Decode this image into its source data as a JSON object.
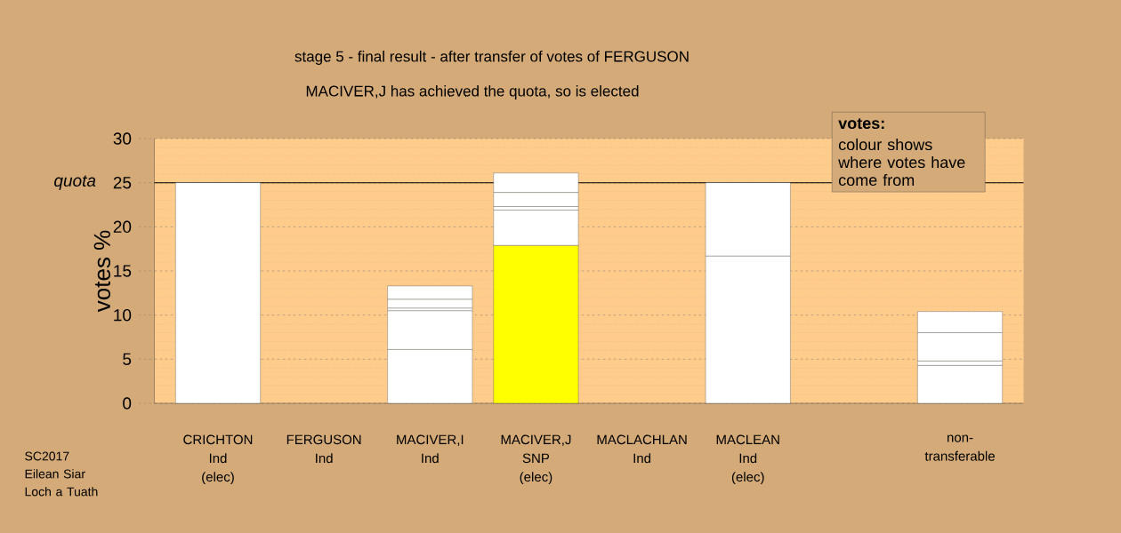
{
  "chart_data": {
    "type": "bar",
    "stacked": true,
    "title": "stage 5 - final result - after transfer of votes of FERGUSON",
    "subtitle": "MACIVER,J has achieved the quota, so is elected",
    "ylabel": "votes %",
    "categories": [
      "CRICHTON\nInd\n(elec)",
      "FERGUSON\nInd",
      "MACIVER,I\nInd",
      "MACIVER,J\nSNP\n(elec)",
      "MACLACHLAN\nInd",
      "MACLEAN\nInd\n(elec)",
      null,
      "non-\ntransferable"
    ],
    "series": [
      {
        "colors": [
          "#ffffff",
          "#ffffff",
          "#ffffff",
          "#ffff00",
          "#ffffff",
          "#ffffff",
          "#ffffff",
          "#ffffff"
        ],
        "values": [
          25,
          null,
          6.1,
          17.9,
          null,
          16.7,
          null,
          4.3
        ]
      },
      {
        "color": "#ffffff",
        "values": [
          null,
          null,
          4.4,
          4.0,
          null,
          8.3,
          null,
          0.5
        ]
      },
      {
        "color": "#ffffff",
        "values": [
          null,
          null,
          0.3,
          0.4,
          null,
          null,
          null,
          3.2
        ]
      },
      {
        "color": "#ffffff",
        "values": [
          null,
          null,
          1.0,
          1.6,
          null,
          null,
          null,
          2.4
        ]
      },
      {
        "color": "#ffffff",
        "values": [
          null,
          null,
          1.5,
          2.2,
          null,
          null,
          null,
          null
        ]
      }
    ],
    "ylim": [
      0,
      30
    ],
    "yticks": [
      0,
      5,
      10,
      15,
      20,
      25,
      30
    ],
    "grid": "y",
    "ref_lines": [
      {
        "axis": "y",
        "value": 25,
        "label": "quota"
      }
    ],
    "annotations": [
      "votes:",
      "colour shows where votes have come from",
      "SC2017\nEilean Siar\nLoch a Tuath"
    ]
  }
}
